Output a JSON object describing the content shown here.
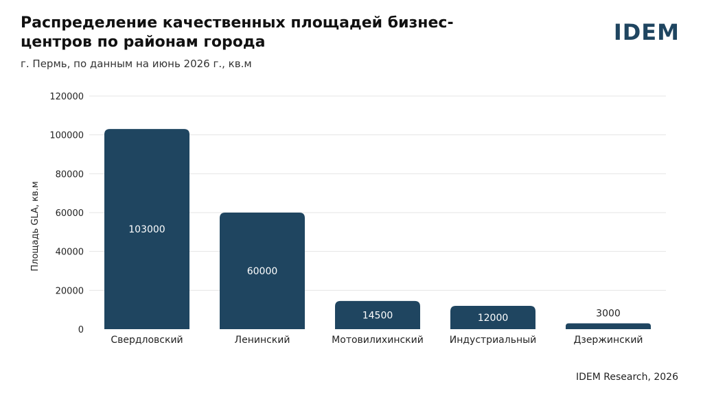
{
  "header": {
    "brand": "IDEM"
  },
  "footer": {
    "source": "IDEM Research, 2026"
  },
  "colors": {
    "bar": "#1f4560",
    "grid": "#e4e4e4",
    "label_inside": "#ffffff",
    "label_outside": "#222222"
  },
  "chart_data": {
    "type": "bar",
    "title": "Распределение качественных площадей бизнес-центров по районам города",
    "subtitle": "г. Пермь, по данным на июнь 2026 г., кв.м",
    "ylabel": "Площадь GLA, кв.м",
    "xlabel": "",
    "categories": [
      "Свердловский",
      "Ленинский",
      "Мотовилихинский",
      "Индустриальный",
      "Дзержинский"
    ],
    "values": [
      103000,
      60000,
      14500,
      12000,
      3000
    ],
    "data_labels": [
      "103000",
      "60000",
      "14500",
      "12000",
      "3000"
    ],
    "ylim": [
      0,
      120000
    ],
    "yticks": [
      0,
      20000,
      40000,
      60000,
      80000,
      100000,
      120000
    ],
    "ytick_labels": [
      "0",
      "20000",
      "40000",
      "60000",
      "80000",
      "100000",
      "120000"
    ],
    "grid": true,
    "legend": "none"
  }
}
